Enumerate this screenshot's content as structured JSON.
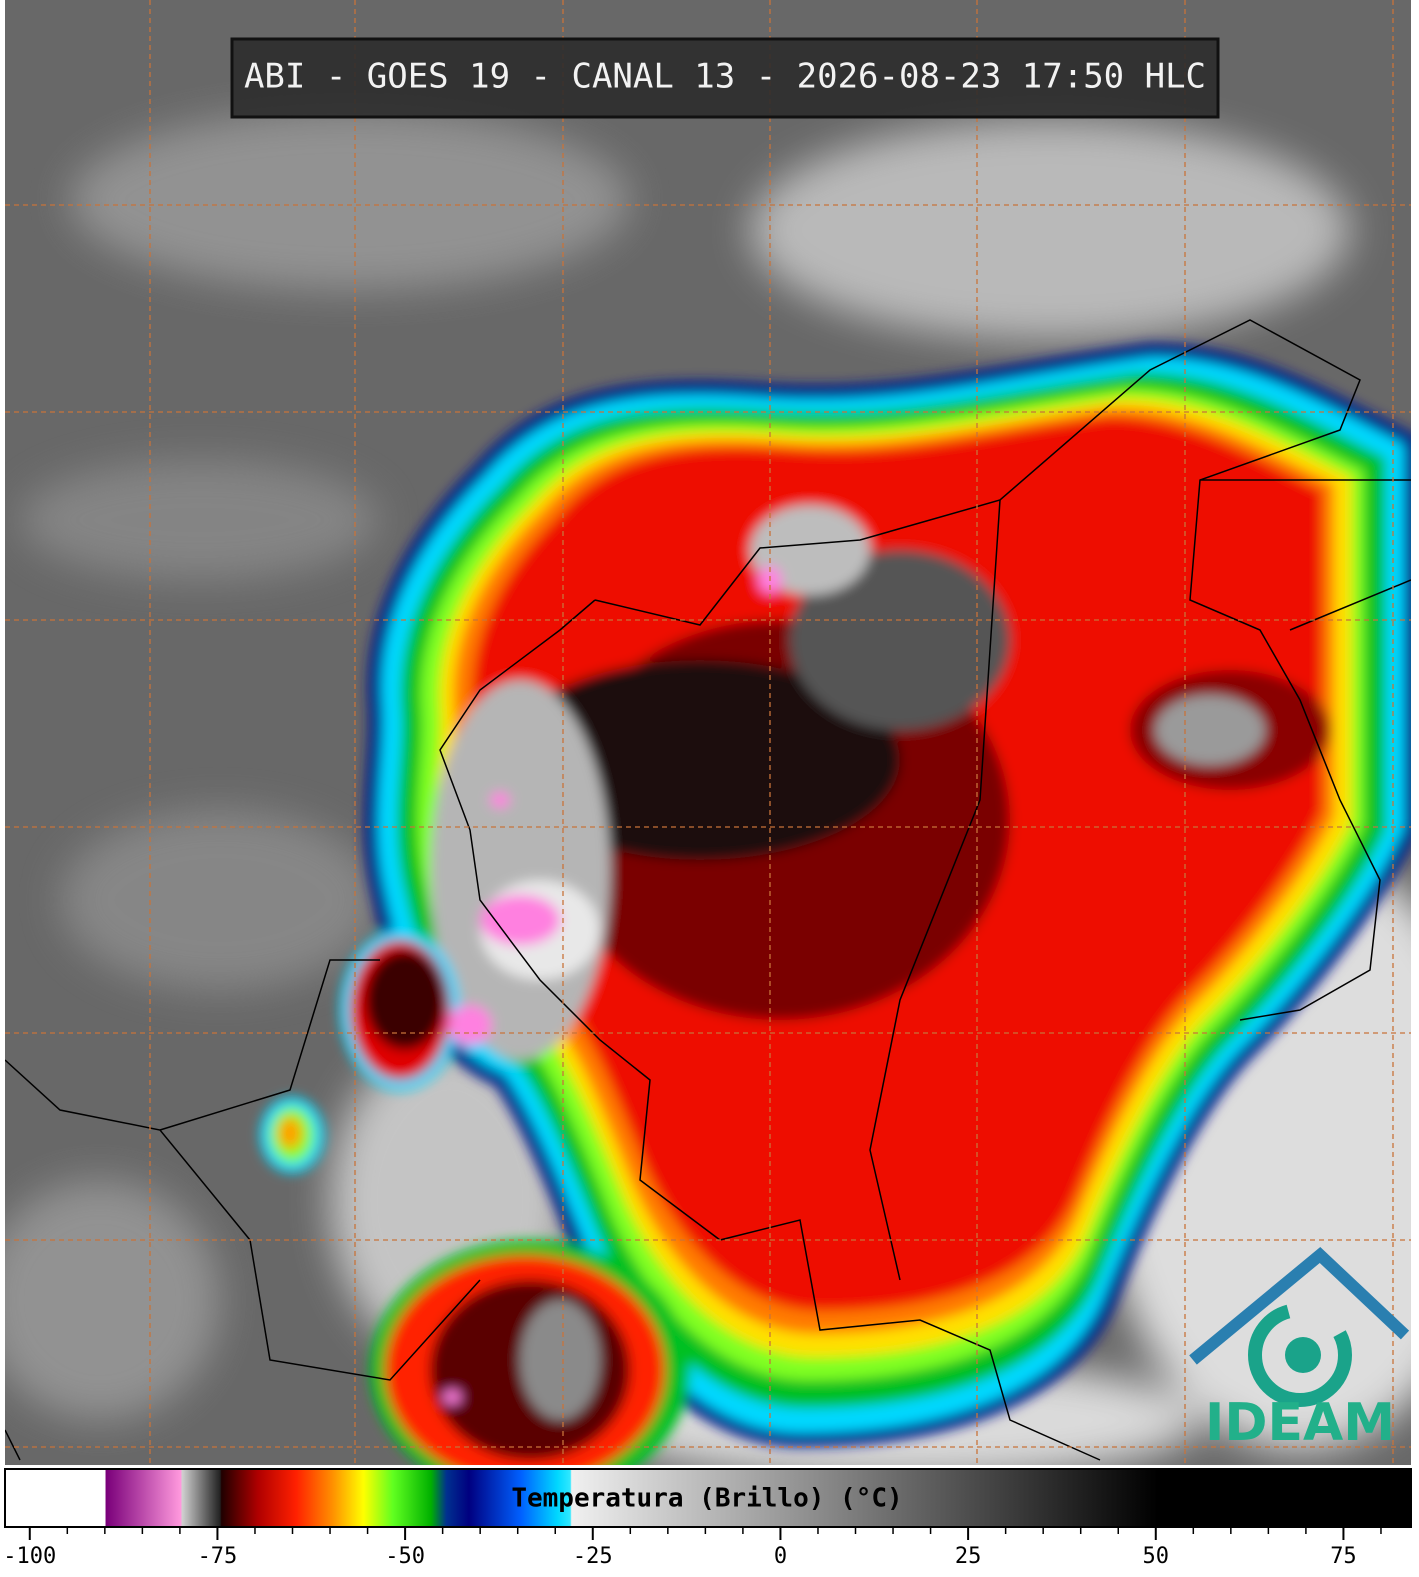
{
  "header": {
    "title": "ABI - GOES 19 - CANAL 13 - 2026-08-23 17:50 HLC"
  },
  "colorbar": {
    "label": "Temperatura (Brillo) (°C)",
    "range": [
      -103.3,
      84
    ],
    "ticks": [
      -100,
      -75,
      -50,
      -25,
      0,
      25,
      50,
      75
    ]
  },
  "logo": {
    "text": "IDEAM"
  }
}
